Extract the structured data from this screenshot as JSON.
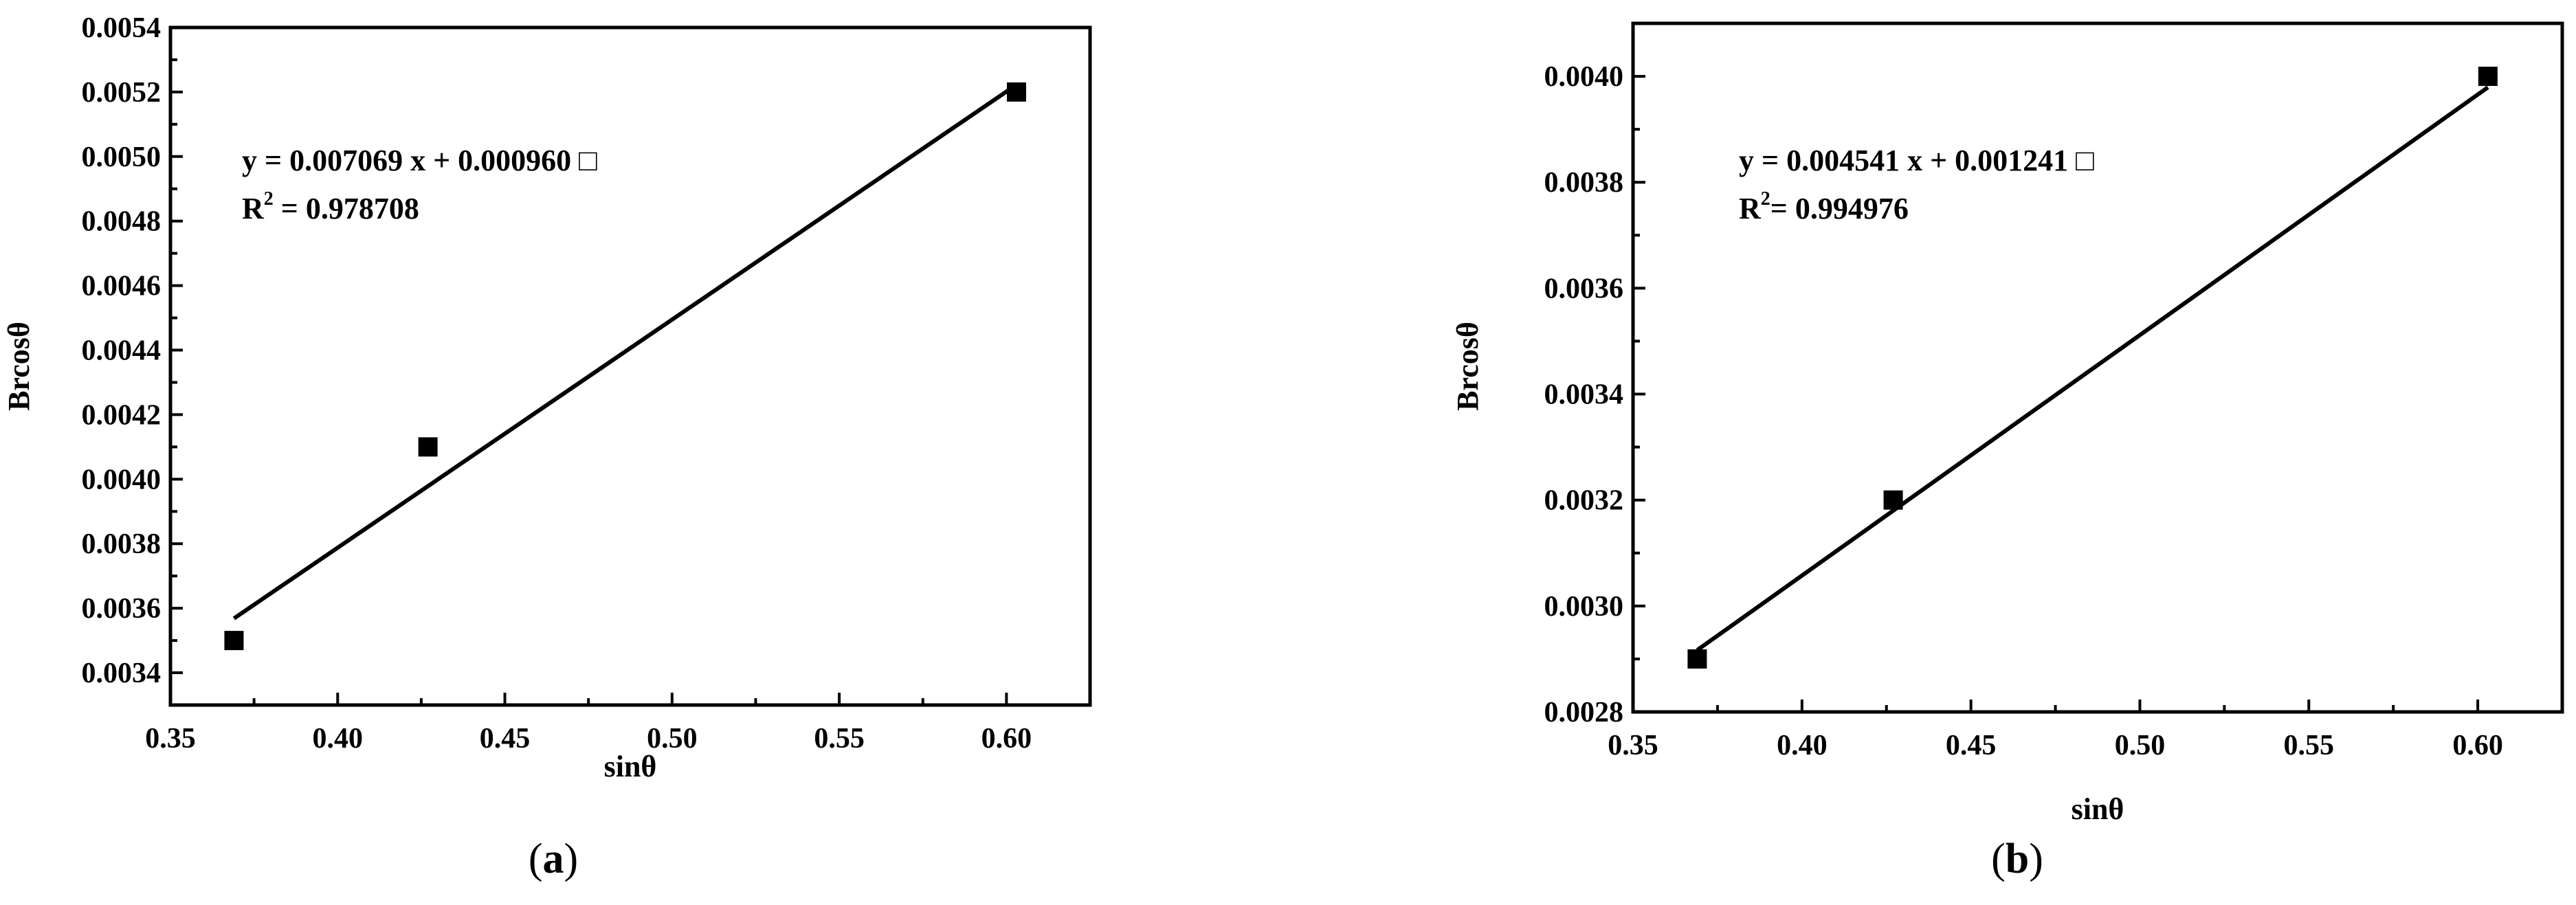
{
  "chart_data": [
    {
      "type": "scatter",
      "panel": "a",
      "caption": "a",
      "xlabel": "sinθ",
      "ylabel": "Brcosθ",
      "xlim": [
        0.35,
        0.625
      ],
      "ylim": [
        0.0033,
        0.0054
      ],
      "xticks": [
        "0.35",
        "0.40",
        "0.45",
        "0.50",
        "0.55",
        "0.60"
      ],
      "yticks": [
        "0.0034",
        "0.0036",
        "0.0038",
        "0.0040",
        "0.0042",
        "0.0044",
        "0.0046",
        "0.0048",
        "0.0050",
        "0.0052",
        "0.0054"
      ],
      "points": [
        {
          "x": 0.369,
          "y": 0.0035
        },
        {
          "x": 0.427,
          "y": 0.0041
        },
        {
          "x": 0.603,
          "y": 0.0052
        }
      ],
      "fit": {
        "slope": 0.007069,
        "intercept": 0.00096,
        "x_range": [
          0.369,
          0.603
        ]
      },
      "equation": "y = 0.007069 x + 0.000960 ",
      "equation_glyph": "□",
      "r2_prefix": "R",
      "r2_sup": "2",
      "r2_value": " = 0.978708",
      "grid": false,
      "legend": "none"
    },
    {
      "type": "scatter",
      "panel": "b",
      "caption": "b",
      "xlabel": "sinθ",
      "ylabel": "Brcosθ",
      "xlim": [
        0.35,
        0.625
      ],
      "ylim": [
        0.0028,
        0.0041
      ],
      "xticks": [
        "0.35",
        "0.40",
        "0.45",
        "0.50",
        "0.55",
        "0.60"
      ],
      "yticks": [
        "0.0028",
        "0.0030",
        "0.0032",
        "0.0034",
        "0.0036",
        "0.0038",
        "0.0040"
      ],
      "points": [
        {
          "x": 0.369,
          "y": 0.0029
        },
        {
          "x": 0.427,
          "y": 0.0032
        },
        {
          "x": 0.603,
          "y": 0.004
        }
      ],
      "fit": {
        "slope": 0.004541,
        "intercept": 0.001241,
        "x_range": [
          0.369,
          0.603
        ]
      },
      "equation": "y = 0.004541 x + 0.001241 ",
      "equation_glyph": "□",
      "r2_prefix": "R",
      "r2_sup": "2",
      "r2_value": "= 0.994976",
      "grid": false,
      "legend": "none"
    }
  ]
}
